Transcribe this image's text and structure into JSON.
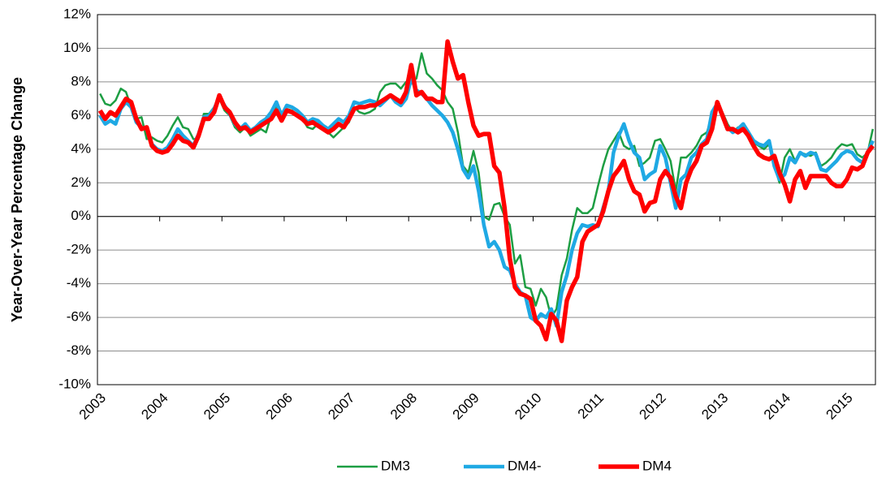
{
  "chart_data": {
    "type": "line",
    "y_label": "Year-Over-Year Percentage Change",
    "categories": [
      "2003",
      null,
      null,
      null,
      null,
      null,
      null,
      null,
      null,
      null,
      null,
      null,
      "2004",
      null,
      null,
      null,
      null,
      null,
      null,
      null,
      null,
      null,
      null,
      null,
      "2005",
      null,
      null,
      null,
      null,
      null,
      null,
      null,
      null,
      null,
      null,
      null,
      "2006",
      null,
      null,
      null,
      null,
      null,
      null,
      null,
      null,
      null,
      null,
      null,
      "2007",
      null,
      null,
      null,
      null,
      null,
      null,
      null,
      null,
      null,
      null,
      null,
      "2008",
      null,
      null,
      null,
      null,
      null,
      null,
      null,
      null,
      null,
      null,
      null,
      "2009",
      null,
      null,
      null,
      null,
      null,
      null,
      null,
      null,
      null,
      null,
      null,
      "2010",
      null,
      null,
      null,
      null,
      null,
      null,
      null,
      null,
      null,
      null,
      null,
      "2011",
      null,
      null,
      null,
      null,
      null,
      null,
      null,
      null,
      null,
      null,
      null,
      "2012",
      null,
      null,
      null,
      null,
      null,
      null,
      null,
      null,
      null,
      null,
      null,
      "2013",
      null,
      null,
      null,
      null,
      null,
      null,
      null,
      null,
      null,
      null,
      null,
      "2014",
      null,
      null,
      null,
      null,
      null,
      null,
      null,
      null,
      null,
      null,
      null,
      "2015",
      null,
      null,
      null,
      null,
      null
    ],
    "series": [
      {
        "name": "DM3",
        "color": "#1d9e43",
        "width": 2.5,
        "values": [
          7.3,
          6.7,
          6.6,
          6.9,
          7.6,
          7.4,
          6.5,
          5.8,
          5.9,
          4.6,
          4.7,
          4.5,
          4.4,
          4.8,
          5.4,
          5.9,
          5.3,
          5.2,
          4.6,
          4.6,
          6.1,
          6.1,
          6.5,
          7.0,
          6.3,
          6.0,
          5.3,
          5.0,
          5.3,
          4.8,
          5.0,
          5.2,
          5.0,
          6.0,
          6.6,
          5.8,
          6.4,
          6.3,
          6.0,
          5.8,
          5.3,
          5.2,
          5.5,
          5.3,
          5.0,
          4.7,
          5.0,
          5.3,
          5.6,
          6.5,
          6.2,
          6.1,
          6.2,
          6.4,
          7.4,
          7.8,
          7.9,
          7.9,
          7.6,
          8.0,
          8.0,
          8.2,
          9.7,
          8.5,
          8.2,
          7.8,
          7.5,
          6.8,
          6.4,
          5.0,
          3.0,
          2.6,
          3.9,
          2.6,
          0.0,
          -0.2,
          0.7,
          0.8,
          0.0,
          -0.5,
          -2.8,
          -2.3,
          -4.2,
          -4.3,
          -5.3,
          -4.3,
          -4.8,
          -6.0,
          -5.5,
          -3.5,
          -2.5,
          -0.8,
          0.5,
          0.2,
          0.2,
          0.5,
          1.8,
          3.0,
          4.0,
          4.5,
          5.0,
          4.2,
          4.0,
          4.2,
          3.0,
          3.2,
          3.5,
          4.5,
          4.6,
          4.0,
          3.3,
          1.5,
          3.5,
          3.5,
          3.8,
          4.2,
          4.8,
          5.0,
          6.0,
          6.5,
          6.2,
          5.5,
          5.0,
          5.3,
          5.2,
          4.8,
          4.4,
          4.2,
          4.0,
          4.3,
          3.0,
          2.0,
          3.5,
          4.0,
          3.3,
          3.8,
          3.7,
          3.6,
          3.8,
          3.0,
          3.2,
          3.5,
          4.0,
          4.3,
          4.2,
          4.3,
          3.7,
          3.5,
          3.8,
          5.2
        ]
      },
      {
        "name": "DM4-",
        "color": "#1fa9e4",
        "width": 4.5,
        "values": [
          6.0,
          5.5,
          5.7,
          5.5,
          6.4,
          6.8,
          6.5,
          5.6,
          5.3,
          5.2,
          4.3,
          4.0,
          3.9,
          4.1,
          4.6,
          5.2,
          4.8,
          4.5,
          4.2,
          4.9,
          5.9,
          6.0,
          6.4,
          7.1,
          6.6,
          6.1,
          5.5,
          5.2,
          5.5,
          5.1,
          5.3,
          5.6,
          5.8,
          6.2,
          6.8,
          6.0,
          6.6,
          6.5,
          6.3,
          6.0,
          5.6,
          5.8,
          5.7,
          5.4,
          5.2,
          5.5,
          5.8,
          5.6,
          6.0,
          6.8,
          6.7,
          6.8,
          6.9,
          6.8,
          6.6,
          6.9,
          7.2,
          6.8,
          6.6,
          7.0,
          8.2,
          7.5,
          7.3,
          7.0,
          6.6,
          6.3,
          6.0,
          5.6,
          5.0,
          4.0,
          2.8,
          2.3,
          3.0,
          1.5,
          -0.5,
          -1.8,
          -1.5,
          -2.0,
          -3.0,
          -3.2,
          -4.0,
          -4.5,
          -4.7,
          -6.0,
          -6.2,
          -5.8,
          -6.0,
          -5.5,
          -6.5,
          -4.5,
          -3.5,
          -2.0,
          -1.0,
          -0.5,
          -0.6,
          -0.5,
          -0.6,
          0.5,
          1.5,
          3.8,
          4.8,
          5.5,
          4.5,
          3.8,
          3.5,
          2.2,
          2.5,
          2.7,
          4.2,
          3.5,
          2.0,
          0.5,
          2.2,
          2.5,
          3.5,
          3.8,
          4.3,
          4.6,
          6.2,
          6.7,
          6.0,
          5.3,
          5.0,
          5.2,
          5.5,
          5.0,
          4.5,
          4.3,
          4.2,
          4.5,
          3.0,
          2.2,
          2.5,
          3.5,
          3.2,
          3.8,
          3.6,
          3.8,
          3.7,
          2.8,
          2.7,
          3.0,
          3.3,
          3.7,
          3.9,
          3.8,
          3.4,
          3.2,
          3.8,
          4.5
        ]
      },
      {
        "name": "DM4",
        "color": "#ff0000",
        "width": 5.5,
        "values": [
          6.3,
          5.8,
          6.2,
          6.0,
          6.5,
          7.0,
          6.8,
          5.8,
          5.2,
          5.3,
          4.2,
          3.9,
          3.8,
          3.9,
          4.3,
          4.8,
          4.5,
          4.4,
          4.1,
          4.8,
          5.8,
          5.8,
          6.2,
          7.2,
          6.5,
          6.2,
          5.6,
          5.2,
          5.3,
          5.0,
          5.2,
          5.4,
          5.6,
          5.8,
          6.3,
          5.7,
          6.3,
          6.2,
          6.0,
          5.8,
          5.5,
          5.6,
          5.4,
          5.2,
          5.0,
          5.2,
          5.5,
          5.3,
          5.8,
          6.4,
          6.5,
          6.5,
          6.6,
          6.6,
          6.8,
          7.0,
          7.2,
          7.0,
          6.8,
          7.4,
          9.0,
          7.2,
          7.4,
          7.0,
          7.0,
          6.8,
          6.8,
          10.4,
          9.2,
          8.2,
          8.4,
          6.8,
          5.4,
          4.8,
          4.9,
          4.9,
          3.0,
          2.6,
          0.5,
          -2.5,
          -4.2,
          -4.6,
          -4.7,
          -4.9,
          -6.2,
          -6.5,
          -7.3,
          -5.8,
          -6.2,
          -7.4,
          -5.0,
          -4.2,
          -3.6,
          -1.5,
          -0.9,
          -0.7,
          -0.5,
          0.3,
          1.5,
          2.4,
          2.8,
          3.3,
          2.2,
          1.5,
          1.3,
          0.3,
          0.8,
          0.9,
          2.2,
          2.7,
          2.3,
          1.2,
          0.5,
          2.0,
          2.8,
          3.3,
          4.2,
          4.4,
          5.2,
          6.8,
          6.0,
          5.2,
          5.2,
          5.0,
          5.2,
          4.8,
          4.2,
          3.7,
          3.5,
          3.4,
          3.6,
          2.6,
          1.9,
          0.9,
          2.2,
          2.7,
          1.7,
          2.4,
          2.4,
          2.4,
          2.4,
          2.0,
          1.8,
          1.8,
          2.2,
          2.9,
          2.8,
          3.0,
          3.8,
          4.2
        ]
      }
    ],
    "ylim": [
      -10,
      12
    ],
    "yticks": [
      {
        "value": -10,
        "label": "-10%"
      },
      {
        "value": -8,
        "label": "-8%"
      },
      {
        "value": -6,
        "label": "-6%"
      },
      {
        "value": -4,
        "label": "-4%"
      },
      {
        "value": -2,
        "label": "-2%"
      },
      {
        "value": 0,
        "label": "0%"
      },
      {
        "value": 2,
        "label": "2%"
      },
      {
        "value": 4,
        "label": "4%"
      },
      {
        "value": 6,
        "label": "6%"
      },
      {
        "value": 8,
        "label": "8%"
      },
      {
        "value": 10,
        "label": "10%"
      },
      {
        "value": 12,
        "label": "12%"
      }
    ],
    "grid": true,
    "legend": "bottom"
  }
}
